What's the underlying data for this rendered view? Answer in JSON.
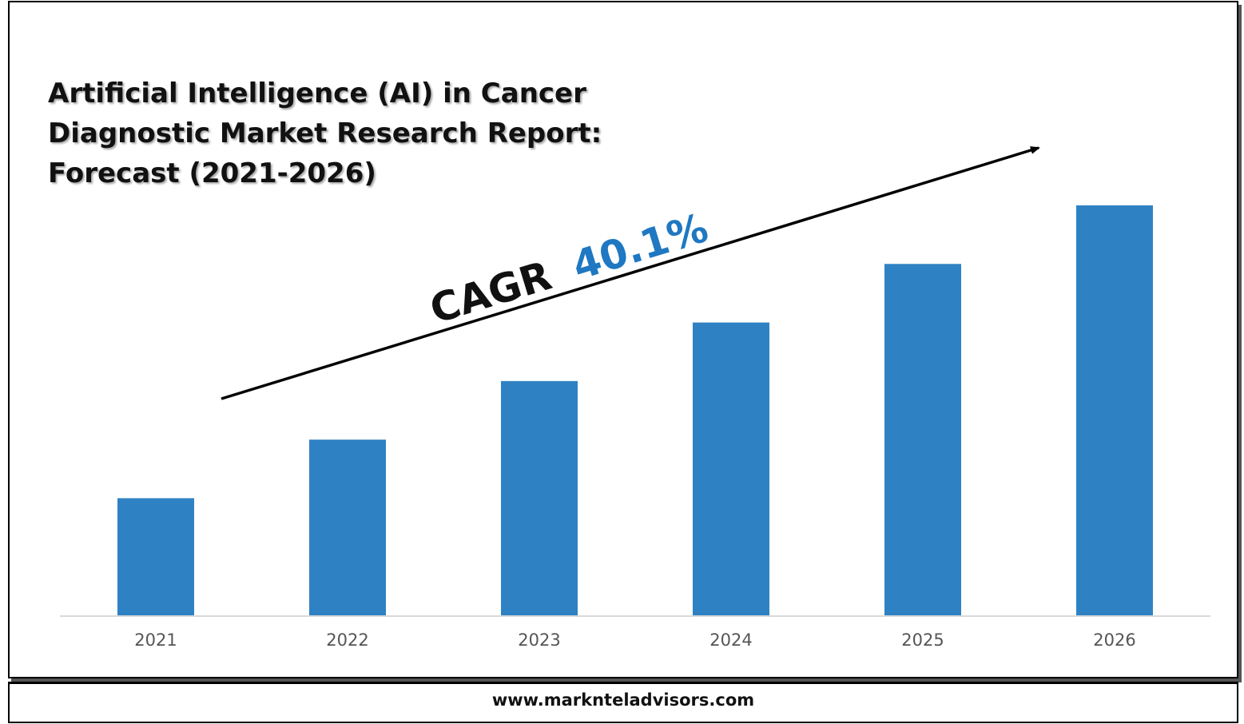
{
  "chart_data": {
    "type": "bar",
    "title": "Artificial Intelligence (AI) in Cancer Diagnostic Market Research Report: Forecast (2021-2026)",
    "categories": [
      "2021",
      "2022",
      "2023",
      "2024",
      "2025",
      "2026"
    ],
    "values": [
      1,
      1.5,
      2,
      2.5,
      3,
      3.5
    ],
    "ylim": [
      0,
      3.5
    ],
    "xlabel": "",
    "ylabel": "",
    "grid": false,
    "bar_color": "#2e82c4",
    "annotation": {
      "label": "CAGR",
      "value": "40.1%",
      "label_color": "#111111",
      "value_color": "#1f78c1"
    }
  },
  "footer": {
    "website": "www.marknteladvisors.com"
  }
}
